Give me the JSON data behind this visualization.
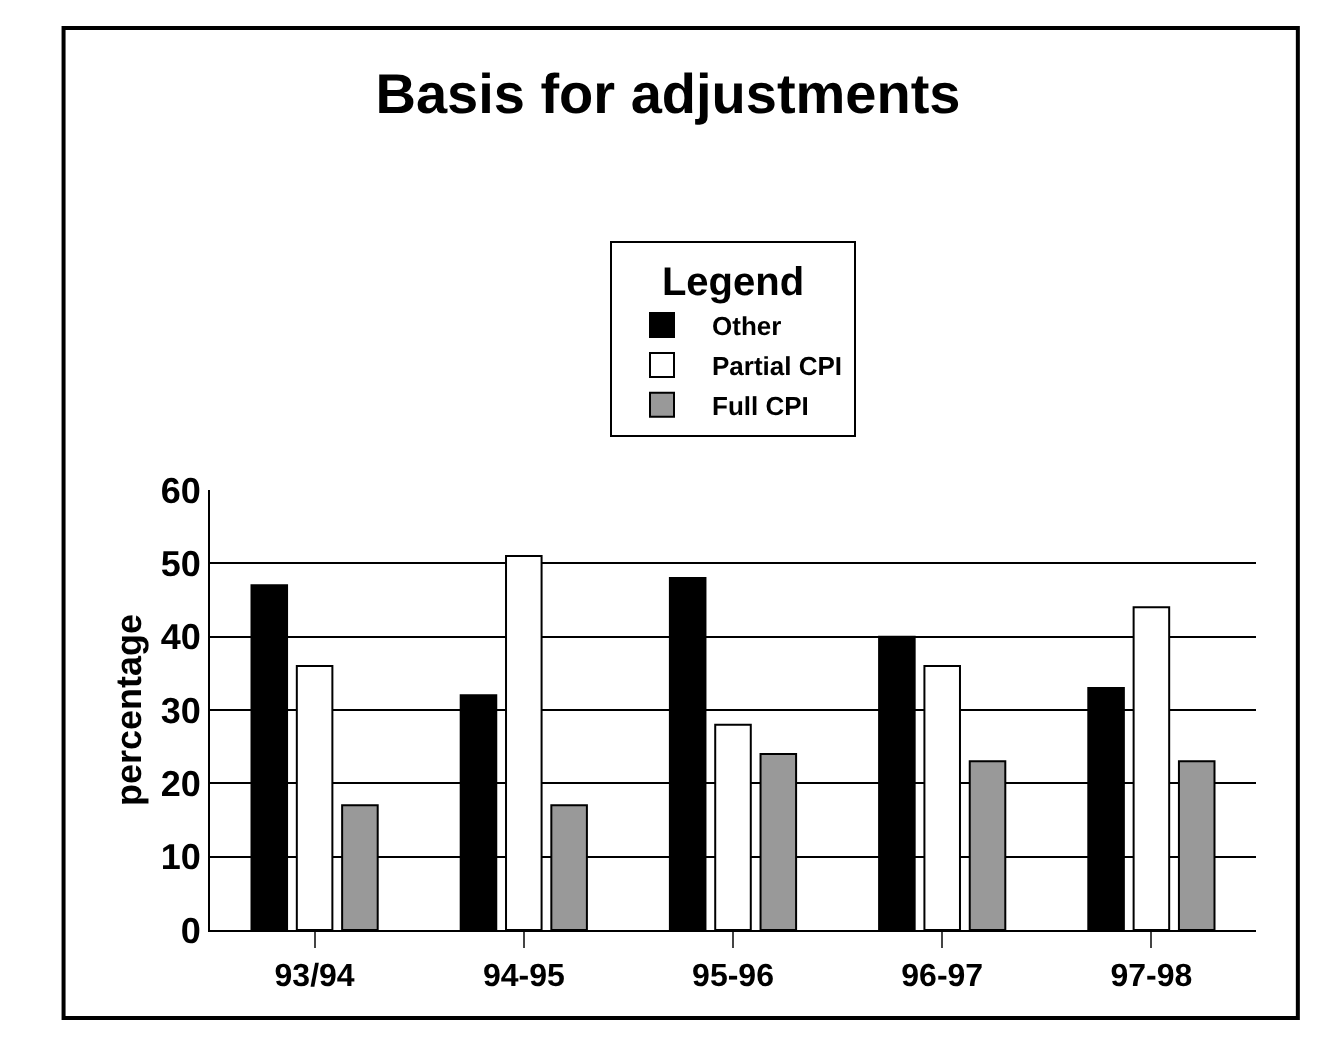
{
  "chart_data": {
    "type": "bar",
    "title": "Basis for adjustments",
    "ylabel": "percentage",
    "legend_title": "Legend",
    "categories": [
      "93/94",
      "94-95",
      "95-96",
      "96-97",
      "97-98"
    ],
    "series": [
      {
        "name": "Other",
        "color": "#000000",
        "values": [
          47,
          32,
          48,
          40,
          33
        ]
      },
      {
        "name": "Partial CPI",
        "color": "#ffffff",
        "values": [
          36,
          51,
          28,
          36,
          44
        ]
      },
      {
        "name": "Full CPI",
        "color": "#999999",
        "values": [
          17,
          17,
          24,
          23,
          23
        ]
      }
    ],
    "ylim": [
      0,
      60
    ],
    "yticks": [
      0,
      10,
      20,
      30,
      40,
      50,
      60
    ],
    "grid": "y",
    "legend": "top"
  }
}
